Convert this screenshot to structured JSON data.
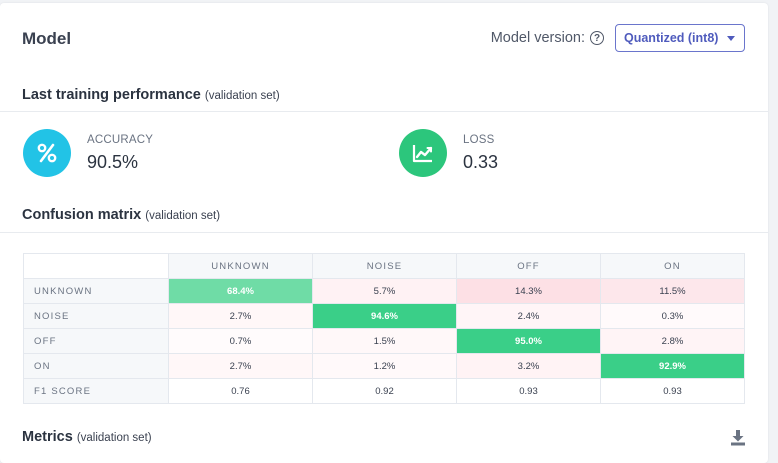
{
  "header": {
    "title": "Model",
    "version_label": "Model version:",
    "version_value": "Quantized (int8)"
  },
  "training": {
    "title": "Last training performance",
    "subtitle": "(validation set)",
    "accuracy": {
      "label": "ACCURACY",
      "value": "90.5%",
      "icon": "percent-icon",
      "color": "#22c3e6"
    },
    "loss": {
      "label": "LOSS",
      "value": "0.33",
      "icon": "chart-line-icon",
      "color": "#2cc67c"
    }
  },
  "confusion": {
    "title": "Confusion matrix",
    "subtitle": "(validation set)",
    "columns": [
      "UNKNOWN",
      "NOISE",
      "OFF",
      "ON"
    ],
    "rows": [
      {
        "label": "UNKNOWN",
        "cells": [
          "68.4%",
          "5.7%",
          "14.3%",
          "11.5%"
        ]
      },
      {
        "label": "NOISE",
        "cells": [
          "2.7%",
          "94.6%",
          "2.4%",
          "0.3%"
        ]
      },
      {
        "label": "OFF",
        "cells": [
          "0.7%",
          "1.5%",
          "95.0%",
          "2.8%"
        ]
      },
      {
        "label": "ON",
        "cells": [
          "2.7%",
          "1.2%",
          "3.2%",
          "92.9%"
        ]
      }
    ],
    "cell_colors": [
      [
        "#6fdca6",
        "#fff2f4",
        "#fde0e5",
        "#fde7eb"
      ],
      [
        "#fff7f8",
        "#3acf88",
        "#fff5f7",
        "#fffafb"
      ],
      [
        "#fffbfc",
        "#fff8f9",
        "#3acf88",
        "#fff4f6"
      ],
      [
        "#fff7f8",
        "#fff9fa",
        "#fff3f5",
        "#3acf88"
      ]
    ],
    "f1": {
      "label": "F1 SCORE",
      "cells": [
        "0.76",
        "0.92",
        "0.93",
        "0.93"
      ]
    }
  },
  "metrics": {
    "title": "Metrics",
    "subtitle": "(validation set)",
    "download_icon": "download-icon"
  }
}
